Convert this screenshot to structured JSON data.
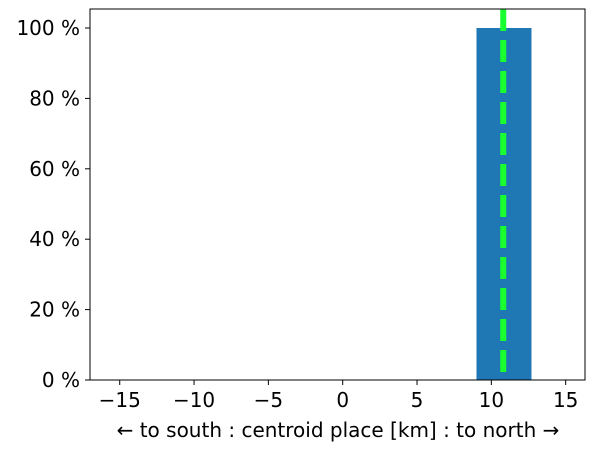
{
  "chart_data": {
    "type": "histogram",
    "xlabel": "← to south : centroid place [km] : to north →",
    "bins": [
      9,
      12.7
    ],
    "counts": [
      100
    ],
    "color": "#1f77b4",
    "reference_line": {
      "x": 10.8,
      "color": "#1aff2e"
    },
    "xlim": [
      -17,
      16.3
    ],
    "ylim": [
      0,
      105.4
    ],
    "xticks": [
      {
        "value": -15,
        "label": "−15"
      },
      {
        "value": -10,
        "label": "−10"
      },
      {
        "value": -5,
        "label": "−5"
      },
      0,
      5,
      10,
      15
    ],
    "yticks": [
      {
        "value": 0,
        "label": "0 %"
      },
      {
        "value": 20,
        "label": "20 %"
      },
      {
        "value": 40,
        "label": "40 %"
      },
      {
        "value": 60,
        "label": "60 %"
      },
      {
        "value": 80,
        "label": "80 %"
      },
      {
        "value": 100,
        "label": "100 %"
      }
    ]
  }
}
